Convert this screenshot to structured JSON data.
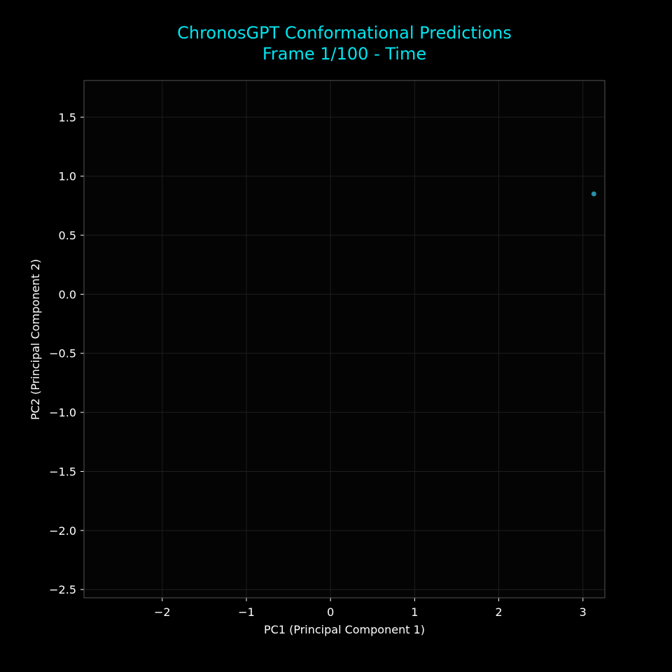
{
  "chart_data": {
    "type": "scatter",
    "title": "ChronosGPT Conformational Predictions",
    "subtitle": "Frame 1/100 - Time",
    "xlabel": "PC1 (Principal Component 1)",
    "ylabel": "PC2 (Principal Component 2)",
    "xlim": [
      -2.93,
      3.26
    ],
    "ylim": [
      -2.57,
      1.81
    ],
    "xticks": [
      -2,
      -1,
      0,
      1,
      2,
      3
    ],
    "xtick_labels": [
      "−2",
      "−1",
      "0",
      "1",
      "2",
      "3"
    ],
    "yticks": [
      1.5,
      1.0,
      0.5,
      0.0,
      -0.5,
      -1.0,
      -1.5,
      -2.0,
      -2.5
    ],
    "ytick_labels": [
      "1.5",
      "1.0",
      "0.5",
      "0.0",
      "−0.5",
      "−1.0",
      "−1.5",
      "−2.0",
      "−2.5"
    ],
    "grid": true,
    "series": [
      {
        "points": [
          {
            "x": 3.13,
            "y": 0.85
          }
        ],
        "color": "#2a8fa8"
      }
    ]
  },
  "colors": {
    "background": "#000000",
    "plot_background": "#040404",
    "title": "#00e5ee",
    "text": "#ffffff",
    "spine": "#555555",
    "grid": "#1e1e1e"
  }
}
